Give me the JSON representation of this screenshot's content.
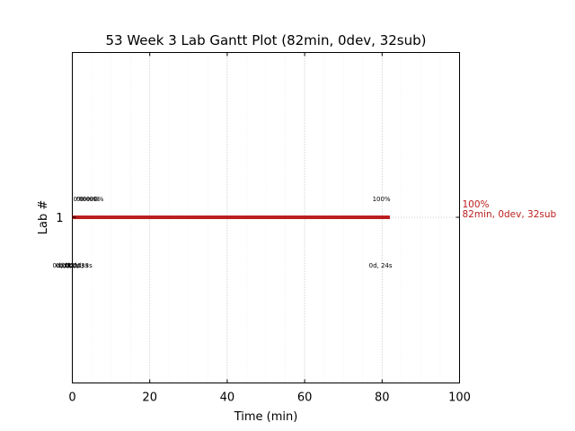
{
  "chart_data": {
    "type": "gantt",
    "title": "53 Week 3 Lab Gantt Plot (82min, 0dev, 32sub)",
    "xlabel": "Time (min)",
    "ylabel": "Lab #",
    "xlim": [
      0,
      100
    ],
    "x_ticks": [
      0,
      20,
      40,
      60,
      80,
      100
    ],
    "y_ticks": [
      "1"
    ],
    "minor_grid_step": 5,
    "grid": true,
    "bar_color": "#bb1e1e",
    "rows": [
      {
        "label": "1",
        "start": 0,
        "end": 82,
        "percent_labels": [
          {
            "x": 0,
            "text": "0%"
          },
          {
            "x": 0.8,
            "text": "0%"
          },
          {
            "x": 1.6,
            "text": "0%"
          },
          {
            "x": 2.4,
            "text": "0%"
          },
          {
            "x": 3.3,
            "text": "0%"
          },
          {
            "x": 4.2,
            "text": "0%"
          },
          {
            "x": 5.3,
            "text": "0%"
          },
          {
            "x": 79.6,
            "text": "100%"
          }
        ],
        "time_labels": [
          {
            "x": 0,
            "text": "0d, 0s"
          },
          {
            "x": 0.8,
            "text": "0d, 1s"
          },
          {
            "x": 1.6,
            "text": "0d, 2s"
          },
          {
            "x": 2.4,
            "text": "0d, 1s"
          },
          {
            "x": 3.3,
            "text": "0d, 2s"
          },
          {
            "x": 4.2,
            "text": "0d, 3s"
          },
          {
            "x": 5.3,
            "text": "0d, 3s"
          },
          {
            "x": 79.6,
            "text": "0d, 24s"
          }
        ],
        "end_label_line1": "100%",
        "end_label_line2": "82min, 0dev, 32sub"
      }
    ]
  }
}
